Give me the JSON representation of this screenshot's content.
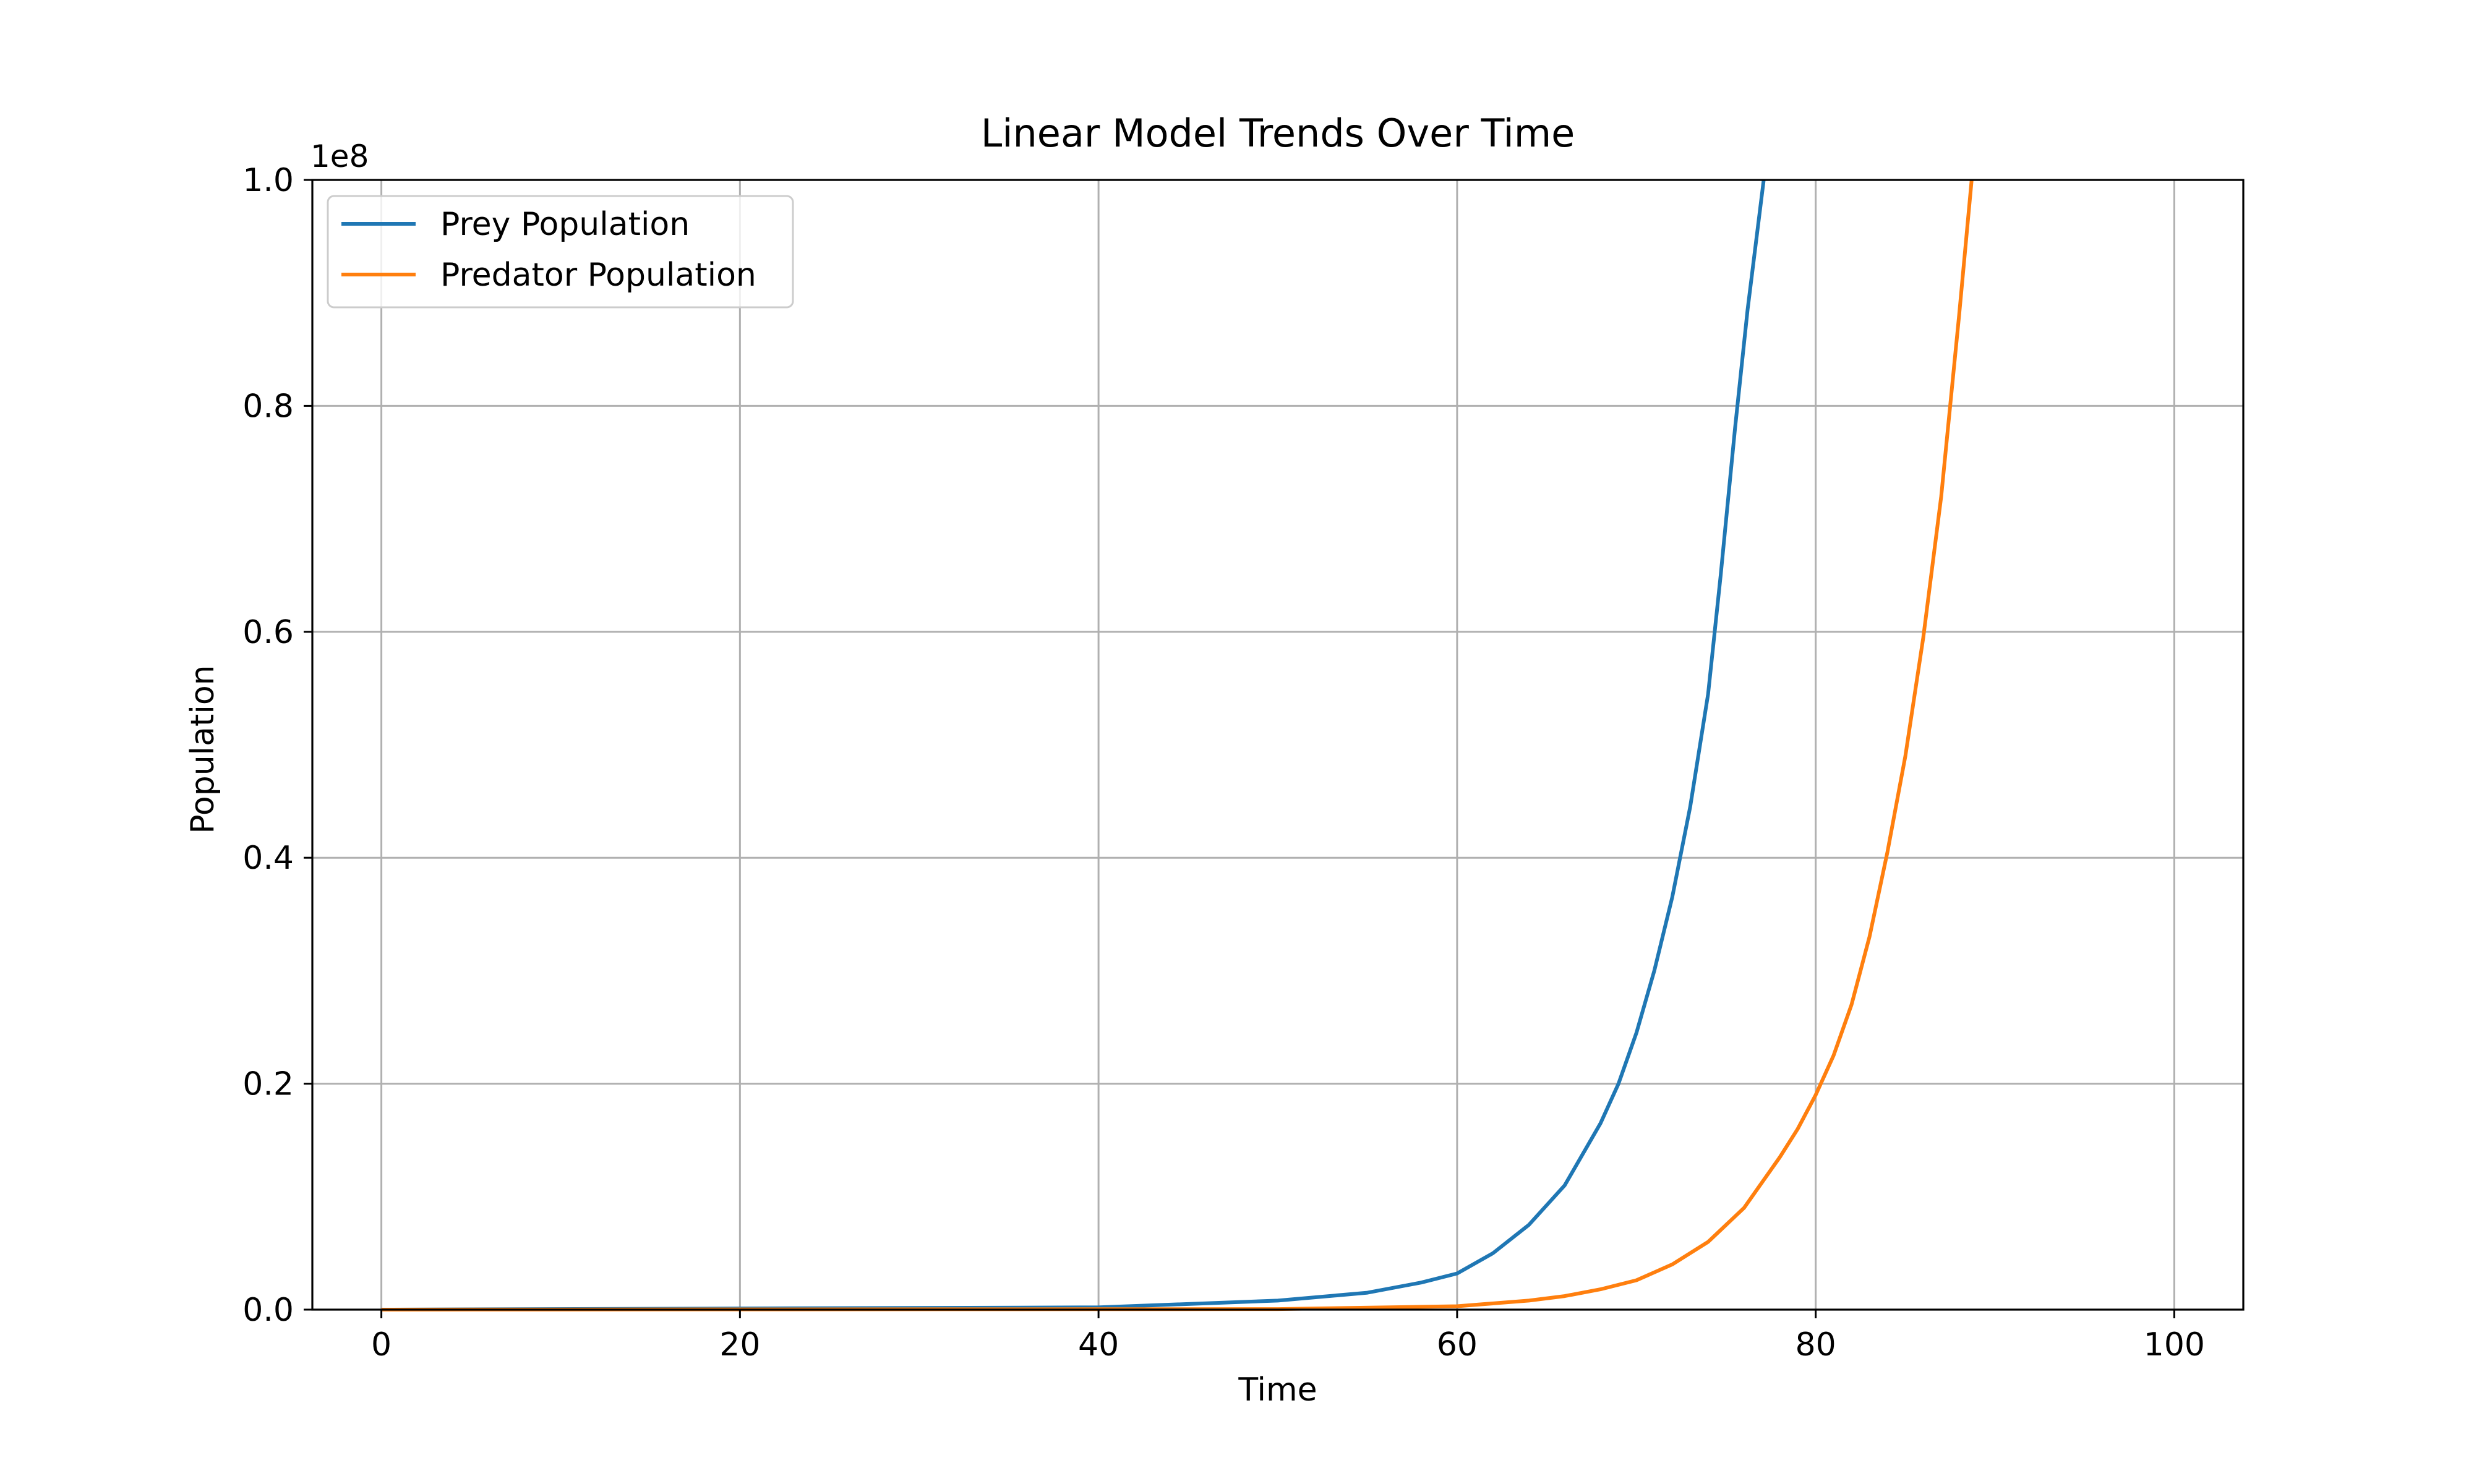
{
  "chart_data": {
    "type": "line",
    "title": "Linear Model Trends Over Time",
    "xlabel": "Time",
    "ylabel": "Population",
    "y_scale_label": "1e8",
    "xlim": [
      -3.85,
      103.85
    ],
    "ylim": [
      0,
      100000000
    ],
    "x_ticks": [
      0,
      20,
      40,
      60,
      80,
      100
    ],
    "x_tick_labels": [
      "0",
      "20",
      "40",
      "60",
      "80",
      "100"
    ],
    "y_ticks": [
      0,
      20000000,
      40000000,
      60000000,
      80000000,
      100000000
    ],
    "y_tick_labels": [
      "0.0",
      "0.2",
      "0.4",
      "0.6",
      "0.8",
      "1.0"
    ],
    "grid": true,
    "legend_position": "top-left",
    "series": [
      {
        "name": "Prey Population",
        "color": "#1f77b4",
        "x": [
          0,
          40,
          50,
          55,
          58,
          60,
          62,
          64,
          66,
          68,
          69,
          70,
          71,
          72,
          73,
          74,
          74.7,
          75.5,
          76.2,
          77.1
        ],
        "values": [
          0,
          200000,
          800000,
          1500000,
          2400000,
          3200000,
          5000000,
          7500000,
          11000000,
          16500000,
          20000000,
          24500000,
          30000000,
          36500000,
          44500000,
          54500000,
          65000000,
          78000000,
          88500000,
          100000000
        ]
      },
      {
        "name": "Predator Population",
        "color": "#ff7f0e",
        "x": [
          0,
          50,
          60,
          64,
          66,
          68,
          70,
          72,
          74,
          76,
          78,
          79,
          80,
          81,
          82,
          83,
          84,
          85,
          86,
          87,
          88,
          88.7
        ],
        "values": [
          0,
          50000,
          300000,
          800000,
          1200000,
          1800000,
          2600000,
          4000000,
          6000000,
          9000000,
          13500000,
          16000000,
          19000000,
          22500000,
          27000000,
          33000000,
          40500000,
          49000000,
          59500000,
          72000000,
          88000000,
          100000000
        ]
      }
    ]
  }
}
